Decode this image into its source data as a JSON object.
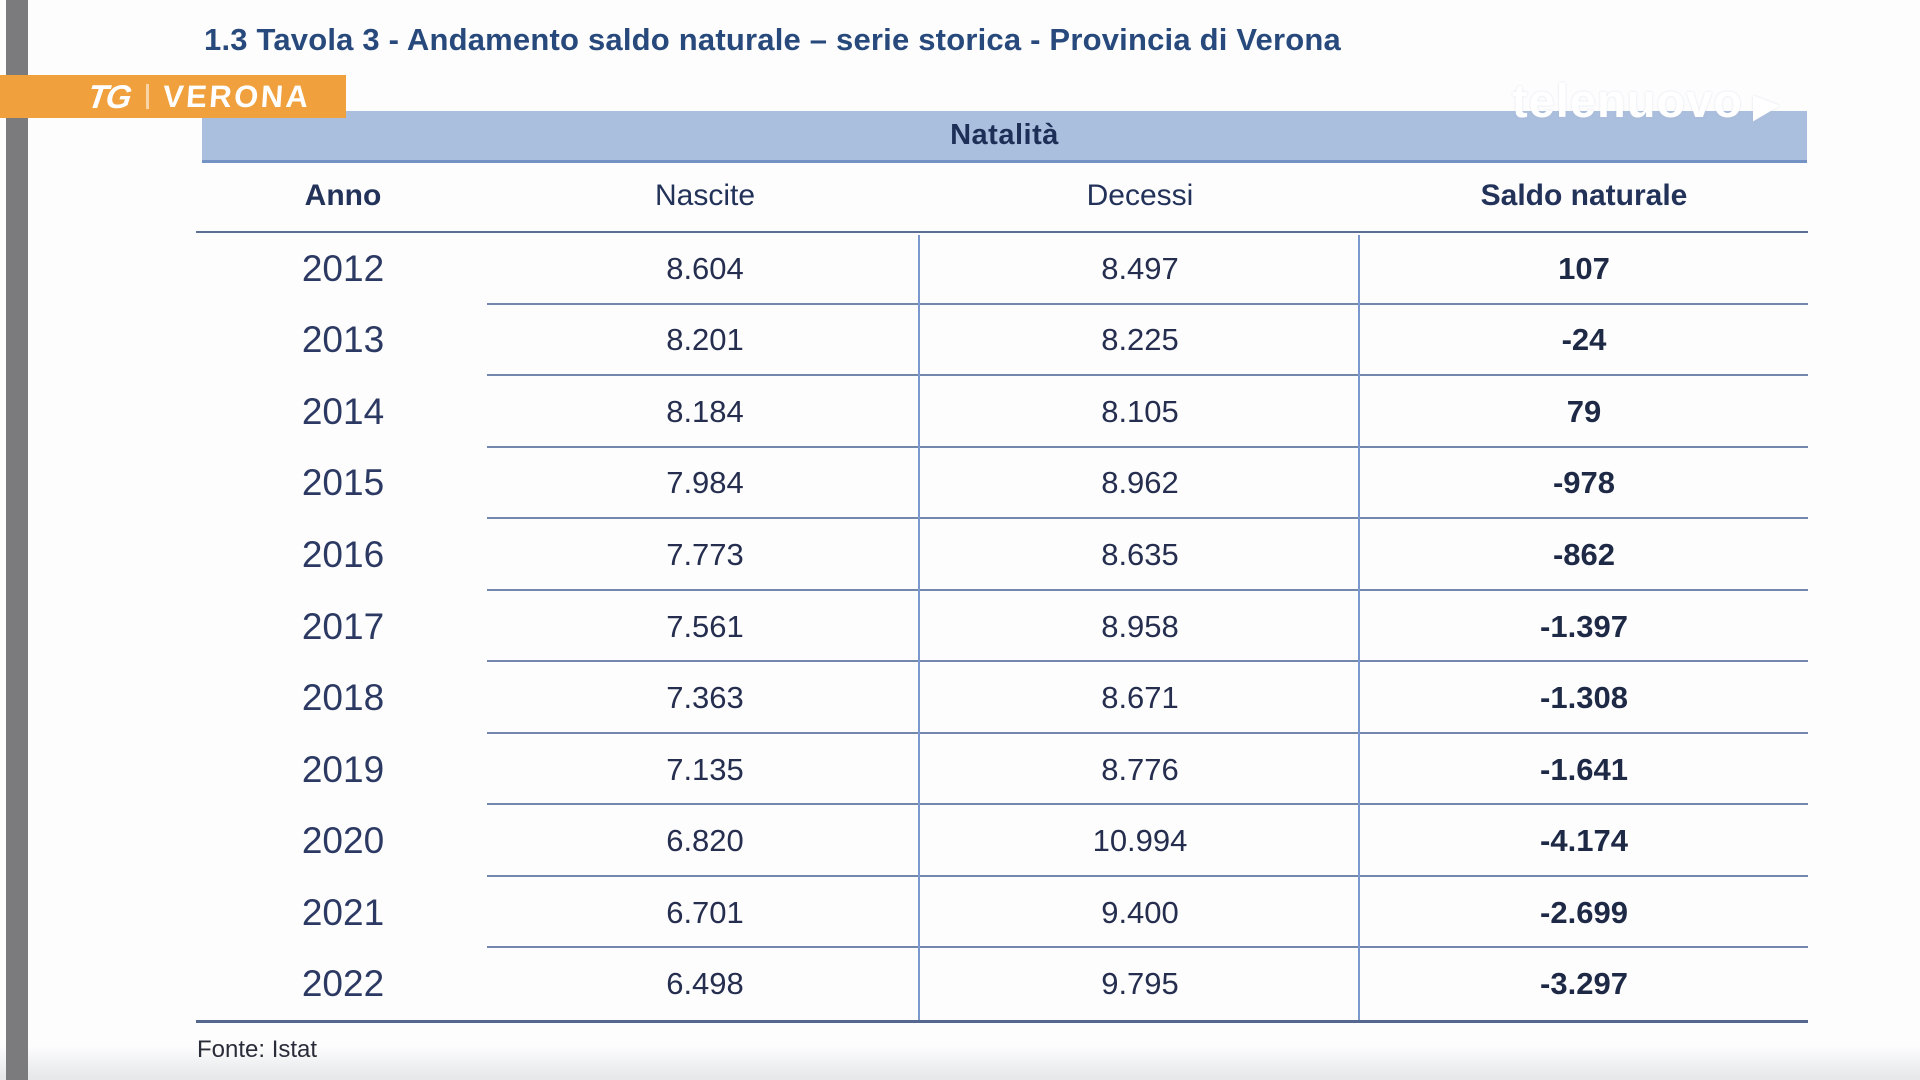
{
  "page": {
    "title": "1.3 Tavola 3 - Andamento saldo naturale – serie storica - Provincia di Verona",
    "source_note": "Fonte: Istat"
  },
  "branding": {
    "badge_logo": "TG",
    "badge_label": "VERONA",
    "watermark": "telenuovo",
    "badge_color": "#f0a03c"
  },
  "colors": {
    "band_fill": "#aabedd",
    "band_underline": "#7492c3",
    "rule_dark": "#54678f",
    "row_divider": "#7487ad",
    "column_divider": "#7b99cf",
    "title_text": "#27497b",
    "table_text": "#252e4e",
    "side_bar_gray": "#7b7b7d"
  },
  "table": {
    "group_header": "Natalità",
    "columns": [
      "Anno",
      "Nascite",
      "Decessi",
      "Saldo naturale"
    ],
    "rows": [
      {
        "anno": "2012",
        "nascite": "8.604",
        "decessi": "8.497",
        "saldo": "107"
      },
      {
        "anno": "2013",
        "nascite": "8.201",
        "decessi": "8.225",
        "saldo": "-24"
      },
      {
        "anno": "2014",
        "nascite": "8.184",
        "decessi": "8.105",
        "saldo": "79"
      },
      {
        "anno": "2015",
        "nascite": "7.984",
        "decessi": "8.962",
        "saldo": "-978"
      },
      {
        "anno": "2016",
        "nascite": "7.773",
        "decessi": "8.635",
        "saldo": "-862"
      },
      {
        "anno": "2017",
        "nascite": "7.561",
        "decessi": "8.958",
        "saldo": "-1.397"
      },
      {
        "anno": "2018",
        "nascite": "7.363",
        "decessi": "8.671",
        "saldo": "-1.308"
      },
      {
        "anno": "2019",
        "nascite": "7.135",
        "decessi": "8.776",
        "saldo": "-1.641"
      },
      {
        "anno": "2020",
        "nascite": "6.820",
        "decessi": "10.994",
        "saldo": "-4.174"
      },
      {
        "anno": "2021",
        "nascite": "6.701",
        "decessi": "9.400",
        "saldo": "-2.699"
      },
      {
        "anno": "2022",
        "nascite": "6.498",
        "decessi": "9.795",
        "saldo": "-3.297"
      }
    ]
  },
  "chart_data": {
    "type": "table",
    "title": "Natalità",
    "categories": [
      "2012",
      "2013",
      "2014",
      "2015",
      "2016",
      "2017",
      "2018",
      "2019",
      "2020",
      "2021",
      "2022"
    ],
    "series": [
      {
        "name": "Nascite",
        "values": [
          8604,
          8201,
          8184,
          7984,
          7773,
          7561,
          7363,
          7135,
          6820,
          6701,
          6498
        ]
      },
      {
        "name": "Decessi",
        "values": [
          8497,
          8225,
          8105,
          8962,
          8635,
          8958,
          8671,
          8776,
          10994,
          9400,
          9795
        ]
      },
      {
        "name": "Saldo naturale",
        "values": [
          107,
          -24,
          79,
          -978,
          -862,
          -1397,
          -1308,
          -1641,
          -4174,
          -2699,
          -3297
        ]
      }
    ]
  }
}
